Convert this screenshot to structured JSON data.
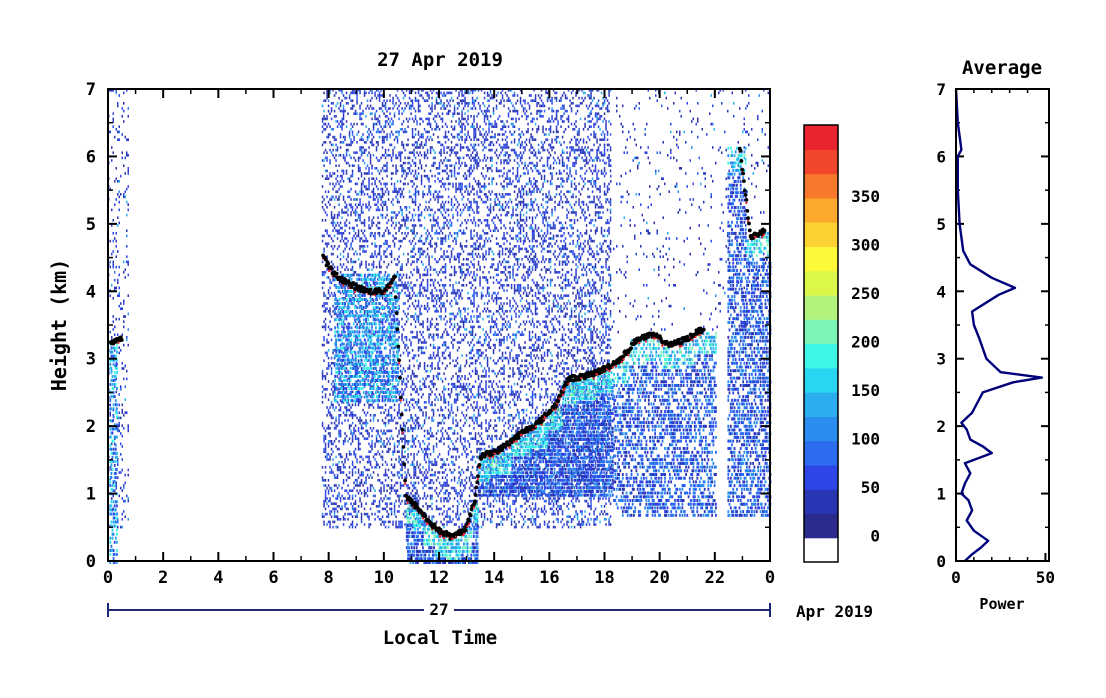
{
  "chart_data": [
    {
      "type": "heatmap",
      "title": "27 Apr 2019",
      "xlabel": "Local Time",
      "ylabel": "Height (km)",
      "xlim": [
        0,
        24
      ],
      "ylim": [
        0,
        7
      ],
      "x_ticks": [
        "0",
        "2",
        "4",
        "6",
        "8",
        "10",
        "12",
        "14",
        "16",
        "18",
        "20",
        "22",
        "0"
      ],
      "y_ticks": [
        "0",
        "1",
        "2",
        "3",
        "4",
        "5",
        "6",
        "7"
      ],
      "date_bar": {
        "day_label": "27",
        "month_label": "Apr 2019"
      },
      "colorbar": {
        "ticks": [
          "0",
          "50",
          "100",
          "150",
          "200",
          "250",
          "300",
          "350"
        ],
        "colors": [
          "#2b2b8e",
          "#2a35b4",
          "#2e46e6",
          "#2c6cf0",
          "#2a8ef0",
          "#2aaeef",
          "#29d6f2",
          "#3ef6e8",
          "#7cf4b8",
          "#b2f37e",
          "#dcf64a",
          "#fbf93a",
          "#fcd232",
          "#fba92d",
          "#f8792b",
          "#f3472d",
          "#e9232f"
        ]
      },
      "boundary_layer_top": [
        {
          "t": 0.1,
          "h": 3.25
        },
        {
          "t": 0.5,
          "h": 3.3
        },
        {
          "t": 7.8,
          "h": 4.5
        },
        {
          "t": 8.2,
          "h": 4.25
        },
        {
          "t": 8.8,
          "h": 4.1
        },
        {
          "t": 9.4,
          "h": 4.0
        },
        {
          "t": 10.0,
          "h": 4.0
        },
        {
          "t": 10.4,
          "h": 4.2
        },
        {
          "t": 10.8,
          "h": 0.95
        },
        {
          "t": 11.2,
          "h": 0.8
        },
        {
          "t": 11.6,
          "h": 0.6
        },
        {
          "t": 12.0,
          "h": 0.45
        },
        {
          "t": 12.5,
          "h": 0.35
        },
        {
          "t": 13.0,
          "h": 0.5
        },
        {
          "t": 13.3,
          "h": 0.9
        },
        {
          "t": 13.5,
          "h": 1.55
        },
        {
          "t": 14.2,
          "h": 1.65
        },
        {
          "t": 15.0,
          "h": 1.9
        },
        {
          "t": 15.6,
          "h": 2.05
        },
        {
          "t": 16.2,
          "h": 2.3
        },
        {
          "t": 16.7,
          "h": 2.7
        },
        {
          "t": 17.4,
          "h": 2.75
        },
        {
          "t": 18.0,
          "h": 2.85
        },
        {
          "t": 18.6,
          "h": 3.0
        },
        {
          "t": 19.2,
          "h": 3.3
        },
        {
          "t": 19.8,
          "h": 3.35
        },
        {
          "t": 20.4,
          "h": 3.2
        },
        {
          "t": 21.0,
          "h": 3.3
        },
        {
          "t": 21.6,
          "h": 3.45
        },
        {
          "t": 22.9,
          "h": 6.15
        },
        {
          "t": 23.3,
          "h": 4.8
        },
        {
          "t": 23.8,
          "h": 4.9
        }
      ]
    },
    {
      "type": "line",
      "title": "Average",
      "xlabel": "Power",
      "ylabel": "",
      "xlim": [
        0,
        52
      ],
      "ylim": [
        0,
        7
      ],
      "x_ticks": [
        "0",
        "50"
      ],
      "y_ticks": [
        "0",
        "1",
        "2",
        "3",
        "4",
        "5",
        "6",
        "7"
      ],
      "series": [
        {
          "points": [
            [
              5,
              0.0
            ],
            [
              9,
              0.1
            ],
            [
              14,
              0.2
            ],
            [
              18,
              0.3
            ],
            [
              10,
              0.45
            ],
            [
              6,
              0.6
            ],
            [
              9,
              0.75
            ],
            [
              7,
              0.9
            ],
            [
              3,
              1.0
            ],
            [
              5,
              1.15
            ],
            [
              8,
              1.3
            ],
            [
              5,
              1.45
            ],
            [
              20,
              1.6
            ],
            [
              15,
              1.7
            ],
            [
              8,
              1.8
            ],
            [
              6,
              1.95
            ],
            [
              3,
              2.05
            ],
            [
              9,
              2.2
            ],
            [
              12,
              2.35
            ],
            [
              15,
              2.5
            ],
            [
              32,
              2.65
            ],
            [
              48,
              2.72
            ],
            [
              25,
              2.8
            ],
            [
              17,
              3.0
            ],
            [
              13,
              3.3
            ],
            [
              10,
              3.5
            ],
            [
              9,
              3.7
            ],
            [
              24,
              3.95
            ],
            [
              33,
              4.05
            ],
            [
              20,
              4.2
            ],
            [
              8,
              4.4
            ],
            [
              4,
              4.6
            ],
            [
              3,
              4.8
            ],
            [
              2,
              5.0
            ],
            [
              1,
              5.5
            ],
            [
              1,
              6.0
            ],
            [
              3,
              6.1
            ],
            [
              2,
              6.3
            ],
            [
              1,
              6.5
            ],
            [
              0,
              7.0
            ]
          ]
        }
      ]
    }
  ]
}
